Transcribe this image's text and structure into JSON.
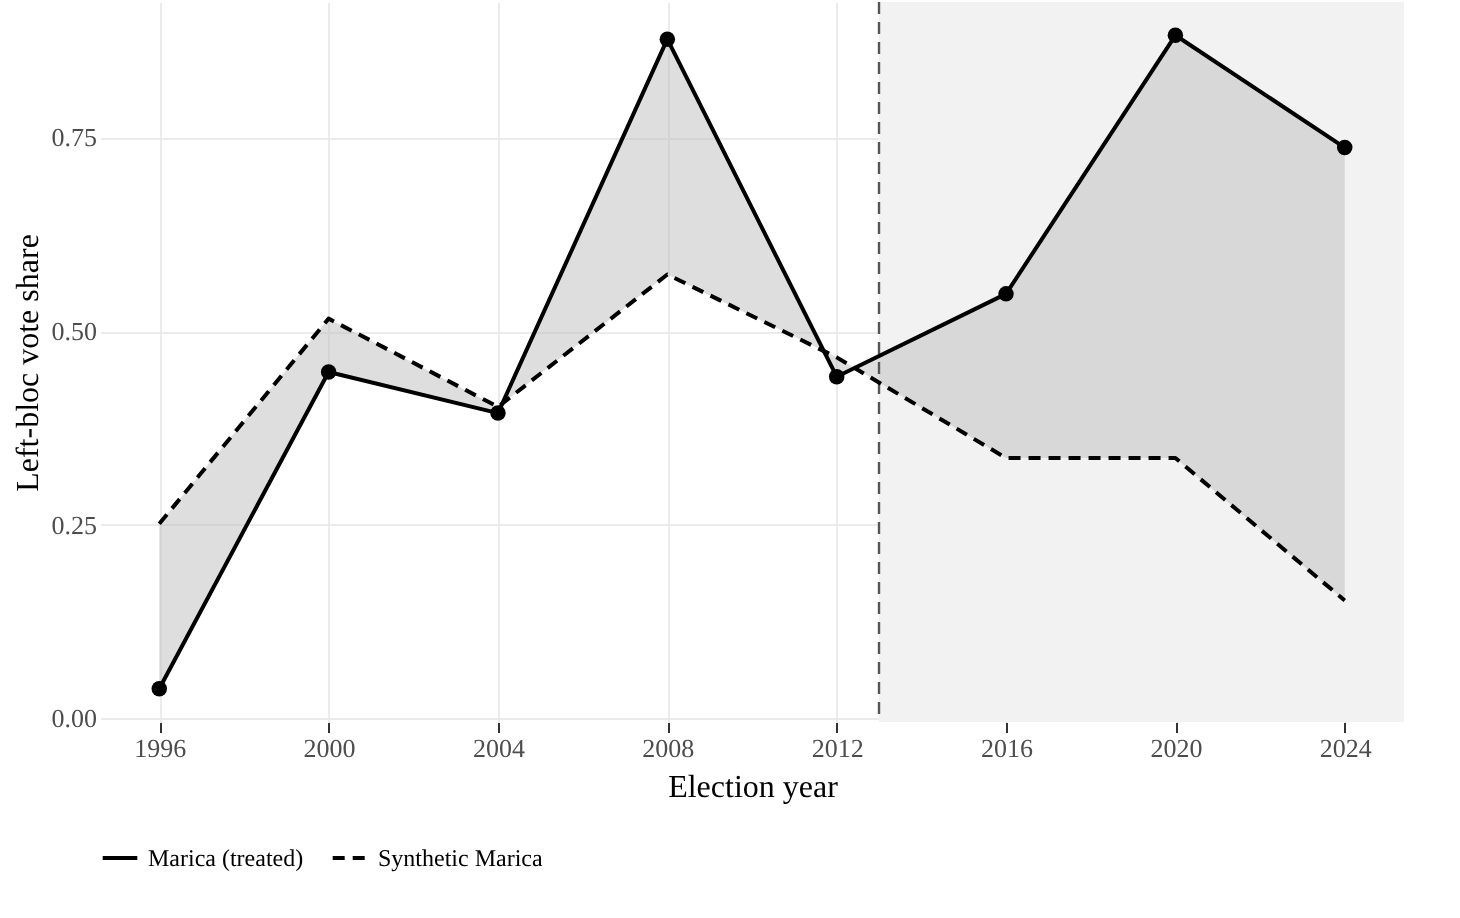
{
  "chart_data": {
    "type": "line",
    "xlabel": "Election year",
    "ylabel": "Left-bloc vote share",
    "x": [
      1996,
      2000,
      2004,
      2008,
      2012,
      2016,
      2020,
      2024
    ],
    "series": [
      {
        "name": "Marica (treated)",
        "color": "#000000",
        "line_style": "solid",
        "marker": "circle",
        "values": [
          0.038,
          0.447,
          0.394,
          0.877,
          0.441,
          0.548,
          0.882,
          0.737
        ],
        "lower": [
          0.251,
          0.516,
          0.402,
          0.573,
          0.466,
          0.336,
          0.336,
          0.152
        ],
        "upper": [
          0.038,
          0.447,
          0.394,
          0.877,
          0.441,
          0.548,
          0.882,
          0.737
        ]
      },
      {
        "name": "Synthetic Marica",
        "color": "#000000",
        "line_style": "dashed",
        "marker": "none",
        "values": [
          0.251,
          0.516,
          0.402,
          0.573,
          0.466,
          0.336,
          0.336,
          0.152
        ]
      }
    ],
    "xlim": [
      1994.6,
      2025.4
    ],
    "xticks": [
      1996,
      2000,
      2004,
      2008,
      2012,
      2016,
      2020,
      2024
    ],
    "ylim": [
      -0.005,
      0.925
    ],
    "yticks": [
      {
        "value": 0,
        "label": "0.00"
      },
      {
        "value": 0.25,
        "label": "0.25"
      },
      {
        "value": 0.5,
        "label": "0.50"
      },
      {
        "value": 0.75,
        "label": "0.75"
      }
    ],
    "ref_lines": [
      {
        "axis": "x",
        "value": 2013,
        "line_style": "dashed",
        "color": "#555555"
      }
    ],
    "bands": [
      {
        "axis": "x",
        "from": 2013,
        "to": 2025.4,
        "color": "#f2f2f2"
      }
    ],
    "grid": true,
    "legend": "bottom"
  }
}
